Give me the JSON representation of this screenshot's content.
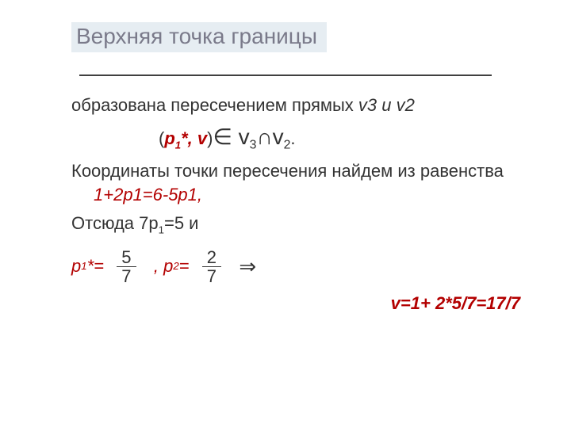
{
  "colors": {
    "title_bg": "#e6edf2",
    "title_text": "#7a7a8a",
    "body_text": "#333333",
    "accent_red": "#b30000",
    "divider": "#404040",
    "background": "#ffffff"
  },
  "fonts": {
    "family": "Verdana, Arial, sans-serif",
    "title_size_pt": 21,
    "body_size_pt": 17
  },
  "title": "Верхняя точка границы",
  "line1_a": "образована пересечением прямых ",
  "line1_b_ital": "v3 и v2",
  "formula": {
    "open": "(",
    "p": "р",
    "p_sub": "1",
    "star_v": "*, v",
    "close_in": ")",
    "in": "∈ ",
    "v": "v",
    "v3_sub": "3",
    "cap": "∩",
    "v2_sub": "2",
    "dot": "."
  },
  "line3_a": "Координаты точки пересечения найдем из равенства      ",
  "line3_eq": "1+2р1=6-5р1,",
  "line4_a": "Отсюда   7р",
  "line4_sub": "1",
  "line4_b": "=5  и",
  "eq": {
    "p1_label_a": "р",
    "p1_sub": "1",
    "p1_label_b": "*= ",
    "frac1_num": "5",
    "frac1_den": "7",
    "p2_label_a": " , р",
    "p2_sub": "2",
    "p2_label_b": "= ",
    "frac2_num": "2",
    "frac2_den": "7",
    "arrow": "⇒"
  },
  "result": "v=1+ 2*5/7=17/7"
}
